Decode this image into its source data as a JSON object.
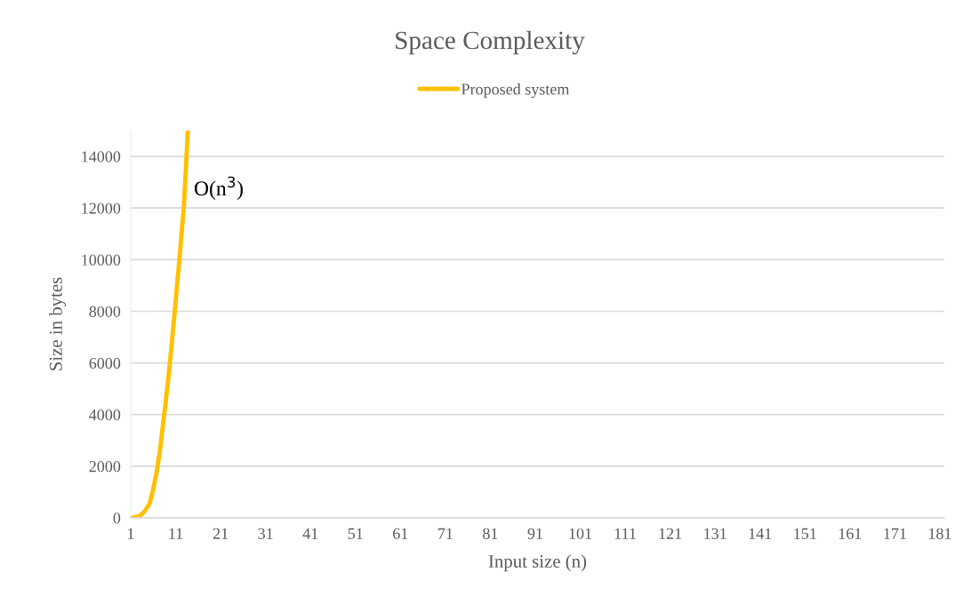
{
  "chart_data": {
    "type": "line",
    "title": "Space Complexity",
    "xlabel": "Input size (n)",
    "ylabel": "Size in bytes",
    "x": [
      1,
      2,
      3.2,
      4.2,
      5.2,
      6,
      6.8,
      7.5,
      8.1,
      8.8,
      9.4,
      10.1,
      10.8,
      11.3,
      11.8,
      12.3,
      12.8,
      13.3,
      13.7
    ],
    "series": [
      {
        "name": "Proposed system",
        "color": "#ffc000",
        "values": [
          0,
          20,
          90,
          280,
          550,
          1100,
          1800,
          2600,
          3500,
          4500,
          5450,
          6700,
          8000,
          9000,
          9950,
          11000,
          12000,
          13600,
          15000
        ]
      }
    ],
    "xlim": [
      1,
      182
    ],
    "xticks": [
      1,
      11,
      21,
      31,
      41,
      51,
      61,
      71,
      81,
      91,
      101,
      111,
      121,
      131,
      141,
      151,
      161,
      171,
      181
    ],
    "ylim": [
      0,
      15000
    ],
    "yticks": [
      0,
      2000,
      4000,
      6000,
      8000,
      10000,
      12000,
      14000
    ],
    "grid": "y",
    "legend": "top",
    "marker": "none",
    "line_style": "solid",
    "annotations": [
      "O(n$^{3}$)"
    ]
  }
}
